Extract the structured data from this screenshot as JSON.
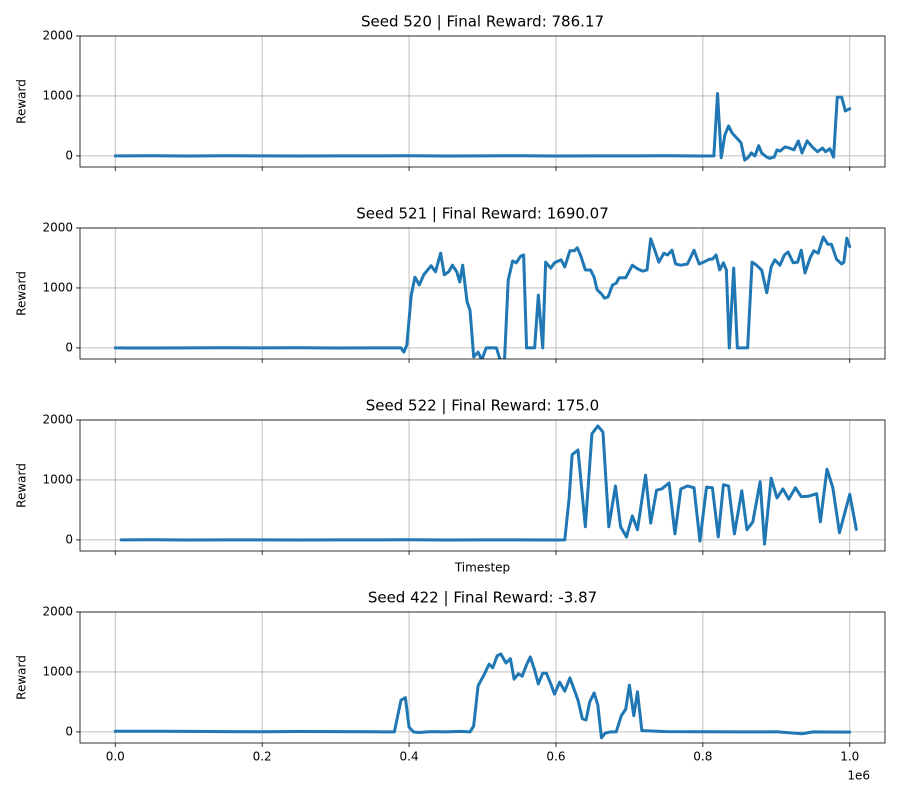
{
  "chart_data": [
    {
      "type": "line",
      "title": "Seed 520 | Final Reward: 786.17",
      "ylabel": "Reward",
      "color": "#1f77b4",
      "grid": true,
      "xlim": [
        -48000,
        1048000
      ],
      "ylim": [
        -185,
        2000
      ],
      "yticks": [
        0,
        1000,
        2000
      ],
      "xticks": [
        0,
        200000,
        400000,
        600000,
        800000,
        1000000
      ],
      "x": [
        0,
        50000,
        100000,
        150000,
        200000,
        250000,
        300000,
        350000,
        400000,
        450000,
        500000,
        550000,
        600000,
        650000,
        700000,
        750000,
        800000,
        815000,
        820000,
        825000,
        830000,
        835000,
        840000,
        852000,
        857000,
        862000,
        866000,
        871000,
        876000,
        880000,
        887000,
        891000,
        897000,
        901000,
        905000,
        912000,
        918000,
        924000,
        930000,
        935000,
        942000,
        949000,
        956000,
        963000,
        967000,
        973000,
        978000,
        983000,
        989000,
        994000,
        1000000
      ],
      "values": [
        0,
        2,
        -1,
        3,
        0,
        -2,
        1,
        0,
        2,
        -1,
        0,
        3,
        -2,
        1,
        0,
        2,
        -1,
        0,
        1040,
        -30,
        350,
        500,
        380,
        220,
        -70,
        -20,
        50,
        0,
        170,
        50,
        -20,
        -40,
        -20,
        100,
        80,
        150,
        130,
        100,
        250,
        50,
        250,
        150,
        70,
        130,
        70,
        120,
        -20,
        980,
        980,
        750,
        786.17
      ]
    },
    {
      "type": "line",
      "title": "Seed 521 | Final Reward: 1690.07",
      "ylabel": "Reward",
      "color": "#1f77b4",
      "grid": true,
      "xlim": [
        -48000,
        1048000
      ],
      "ylim": [
        -185,
        2000
      ],
      "yticks": [
        0,
        1000,
        2000
      ],
      "xticks": [
        0,
        200000,
        400000,
        600000,
        800000,
        1000000
      ],
      "x": [
        0,
        50000,
        100000,
        150000,
        200000,
        250000,
        300000,
        350000,
        389000,
        393000,
        397000,
        403000,
        408000,
        414000,
        420000,
        430000,
        436000,
        443000,
        448000,
        454000,
        459000,
        465000,
        469000,
        473000,
        479000,
        483000,
        488000,
        494000,
        499000,
        505000,
        512000,
        519000,
        524000,
        530000,
        535000,
        541000,
        546000,
        552000,
        556000,
        560000,
        565000,
        571000,
        576000,
        582000,
        586000,
        593000,
        598000,
        607000,
        612000,
        619000,
        625000,
        629000,
        634000,
        640000,
        647000,
        652000,
        656000,
        662000,
        666000,
        671000,
        677000,
        682000,
        686000,
        695000,
        704000,
        711000,
        718000,
        724000,
        729000,
        736000,
        740000,
        747000,
        752000,
        758000,
        763000,
        770000,
        779000,
        788000,
        795000,
        801000,
        809000,
        813000,
        818000,
        823000,
        828000,
        832000,
        836000,
        842000,
        847000,
        853000,
        861000,
        867000,
        873000,
        880000,
        887000,
        893000,
        898000,
        905000,
        911000,
        916000,
        923000,
        929000,
        934000,
        939000,
        946000,
        951000,
        957000,
        964000,
        970000,
        975000,
        982000,
        989000,
        992000,
        996000,
        1000000
      ],
      "values": [
        0,
        -2,
        1,
        3,
        0,
        2,
        -1,
        0,
        0,
        -70,
        50,
        880,
        1180,
        1050,
        1220,
        1370,
        1270,
        1580,
        1220,
        1270,
        1380,
        1270,
        1100,
        1380,
        770,
        630,
        -150,
        -70,
        -200,
        0,
        0,
        0,
        -200,
        -200,
        1130,
        1450,
        1420,
        1530,
        1550,
        0,
        0,
        0,
        880,
        0,
        1430,
        1330,
        1420,
        1470,
        1350,
        1620,
        1620,
        1670,
        1530,
        1300,
        1300,
        1180,
        970,
        900,
        830,
        850,
        1050,
        1080,
        1170,
        1170,
        1380,
        1320,
        1280,
        1300,
        1820,
        1580,
        1430,
        1580,
        1550,
        1630,
        1400,
        1380,
        1400,
        1630,
        1400,
        1430,
        1480,
        1480,
        1550,
        1300,
        1420,
        1300,
        0,
        1330,
        0,
        0,
        0,
        1430,
        1380,
        1300,
        920,
        1350,
        1470,
        1380,
        1550,
        1600,
        1420,
        1430,
        1630,
        1250,
        1500,
        1620,
        1580,
        1850,
        1730,
        1730,
        1480,
        1400,
        1430,
        1830,
        1690.07
      ]
    },
    {
      "type": "line",
      "title": "Seed 522 | Final Reward: 175.0",
      "ylabel": "Reward",
      "xlabel": "Timestep",
      "color": "#1f77b4",
      "grid": true,
      "xlim": [
        -48000,
        1048000
      ],
      "ylim": [
        -185,
        2000
      ],
      "yticks": [
        0,
        1000,
        2000
      ],
      "xticks": [
        0,
        200000,
        400000,
        600000,
        800000,
        1000000
      ],
      "x": [
        8000,
        50000,
        100000,
        150000,
        200000,
        250000,
        300000,
        350000,
        400000,
        450000,
        500000,
        550000,
        600000,
        612000,
        618000,
        622000,
        630000,
        640000,
        649000,
        657000,
        664000,
        672000,
        681000,
        688000,
        696000,
        704000,
        711000,
        722000,
        729000,
        737000,
        744000,
        754000,
        762000,
        770000,
        779000,
        788000,
        796000,
        805000,
        813000,
        821000,
        828000,
        835000,
        843000,
        853000,
        860000,
        868000,
        878000,
        884000,
        893000,
        901000,
        909000,
        917000,
        926000,
        934000,
        944000,
        955000,
        960000,
        969000,
        977000,
        986000,
        1000000,
        1009000
      ],
      "values": [
        0,
        2,
        -1,
        1,
        0,
        -2,
        1,
        0,
        2,
        -1,
        0,
        1,
        -1,
        0,
        700,
        1420,
        1500,
        220,
        1770,
        1900,
        1800,
        220,
        900,
        220,
        50,
        400,
        170,
        1080,
        280,
        830,
        850,
        950,
        100,
        850,
        900,
        870,
        -20,
        880,
        870,
        50,
        920,
        900,
        100,
        820,
        170,
        300,
        970,
        -70,
        1030,
        700,
        850,
        680,
        870,
        720,
        730,
        770,
        300,
        1180,
        870,
        120,
        760,
        175
      ]
    },
    {
      "type": "line",
      "title": "Seed 422 | Final Reward: -3.87",
      "ylabel": "Reward",
      "x_offset_label": "1e6",
      "color": "#1f77b4",
      "grid": true,
      "xlim": [
        -48000,
        1048000
      ],
      "ylim": [
        -185,
        2000
      ],
      "yticks": [
        0,
        1000,
        2000
      ],
      "xticks": [
        {
          "value": 0,
          "label": "0.0"
        },
        {
          "value": 200000,
          "label": "0.2"
        },
        {
          "value": 400000,
          "label": "0.4"
        },
        {
          "value": 600000,
          "label": "0.6"
        },
        {
          "value": 800000,
          "label": "0.8"
        },
        {
          "value": 1000000,
          "label": "1.0"
        }
      ],
      "x": [
        0,
        50000,
        100000,
        150000,
        200000,
        250000,
        300000,
        350000,
        380000,
        389000,
        395000,
        400000,
        406000,
        413000,
        430000,
        450000,
        470000,
        483000,
        488000,
        494000,
        502000,
        509000,
        514000,
        520000,
        525000,
        532000,
        538000,
        543000,
        549000,
        554000,
        560000,
        565000,
        571000,
        576000,
        582000,
        587000,
        593000,
        598000,
        605000,
        612000,
        619000,
        625000,
        630000,
        636000,
        641000,
        646000,
        652000,
        657000,
        662000,
        667000,
        674000,
        682000,
        689000,
        695000,
        700000,
        706000,
        711000,
        717000,
        722000,
        750000,
        800000,
        850000,
        900000,
        935000,
        950000,
        1000000
      ],
      "values": [
        10,
        12,
        8,
        5,
        3,
        6,
        4,
        2,
        0,
        530,
        570,
        80,
        0,
        -10,
        5,
        0,
        8,
        0,
        100,
        770,
        950,
        1130,
        1070,
        1270,
        1300,
        1150,
        1220,
        880,
        970,
        930,
        1120,
        1250,
        1030,
        800,
        980,
        980,
        800,
        630,
        830,
        680,
        900,
        700,
        530,
        220,
        200,
        500,
        650,
        450,
        -100,
        -20,
        0,
        0,
        270,
        380,
        780,
        270,
        670,
        20,
        20,
        5,
        3,
        0,
        2,
        -30,
        0,
        -3.87
      ]
    }
  ]
}
